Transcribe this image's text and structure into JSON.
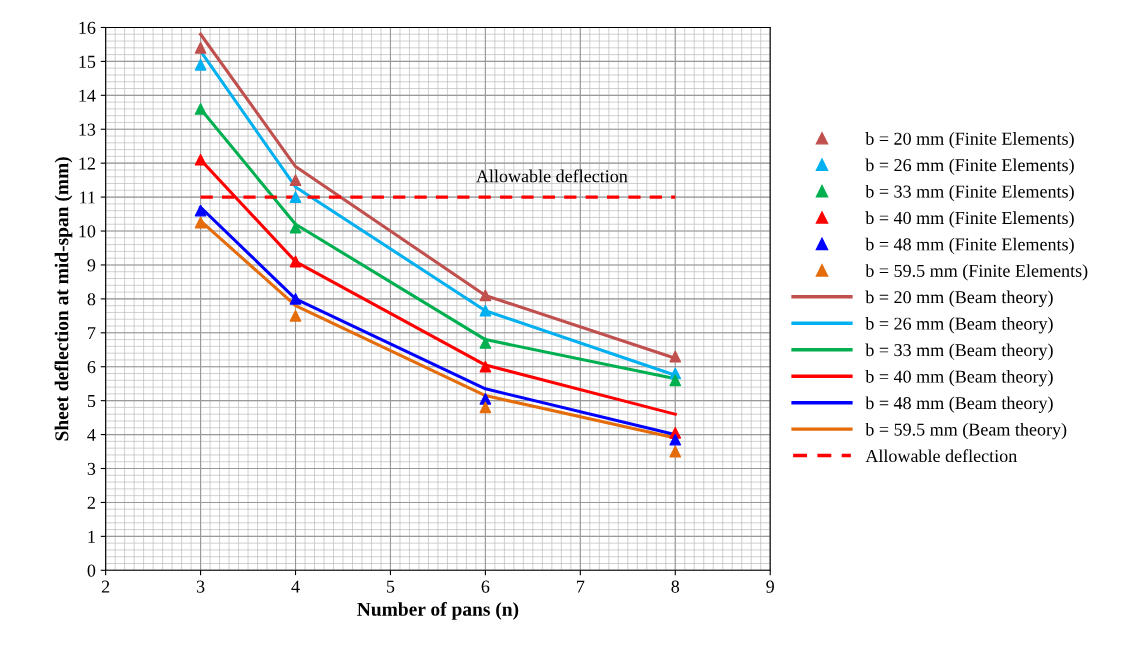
{
  "chart_data": {
    "type": "scatter",
    "xlabel": "Number of pans (n)",
    "ylabel": "Sheet deflection at mid-span (mm)",
    "xlim": [
      2,
      9
    ],
    "xticks": [
      2,
      3,
      4,
      5,
      6,
      7,
      8,
      9
    ],
    "ylim": [
      0,
      16
    ],
    "yticks": [
      0,
      1,
      2,
      3,
      4,
      5,
      6,
      7,
      8,
      9,
      10,
      11,
      12,
      13,
      14,
      15,
      16
    ],
    "grid": true,
    "legend": "right",
    "annotations": [
      {
        "text": "Allowable deflection",
        "x": 6.7,
        "y": 11
      }
    ],
    "series": [
      {
        "name": "b = 20 mm (Finite Elements)",
        "marker": "triangle",
        "color": "#c0504d",
        "x": [
          3,
          4,
          6,
          8
        ],
        "values": [
          15.4,
          11.5,
          8.1,
          6.3
        ]
      },
      {
        "name": "b = 26 mm (Finite Elements)",
        "marker": "triangle",
        "color": "#00b0f0",
        "x": [
          3,
          4,
          6,
          8
        ],
        "values": [
          14.9,
          11.0,
          7.65,
          5.8
        ]
      },
      {
        "name": "b = 33 mm (Finite Elements)",
        "marker": "triangle",
        "color": "#00b050",
        "x": [
          3,
          4,
          6,
          8
        ],
        "values": [
          13.6,
          10.1,
          6.7,
          5.6
        ]
      },
      {
        "name": "b = 40 mm (Finite Elements)",
        "marker": "triangle",
        "color": "#ff0000",
        "x": [
          3,
          4,
          6,
          8
        ],
        "values": [
          12.1,
          9.1,
          6.0,
          4.05
        ]
      },
      {
        "name": "b = 48 mm (Finite Elements)",
        "marker": "triangle",
        "color": "#0000ff",
        "x": [
          3,
          4,
          6,
          8
        ],
        "values": [
          10.6,
          8.0,
          5.05,
          3.85
        ]
      },
      {
        "name": "b = 59.5 mm (Finite Elements)",
        "marker": "triangle",
        "color": "#e46c0a",
        "x": [
          3,
          4,
          6,
          8
        ],
        "values": [
          10.25,
          7.5,
          4.8,
          3.5
        ]
      },
      {
        "name": "b = 20 mm (Beam theory)",
        "type": "line",
        "line_style": "solid",
        "color": "#c0504d",
        "x": [
          3,
          4,
          6,
          8
        ],
        "values": [
          15.8,
          11.9,
          8.1,
          6.25
        ]
      },
      {
        "name": "b = 26 mm (Beam theory)",
        "type": "line",
        "line_style": "solid",
        "color": "#00b0f0",
        "x": [
          3,
          4,
          6,
          8
        ],
        "values": [
          15.3,
          11.3,
          7.65,
          5.75
        ]
      },
      {
        "name": "b = 33 mm (Beam theory)",
        "type": "line",
        "line_style": "solid",
        "color": "#00b050",
        "x": [
          3,
          4,
          6,
          8
        ],
        "values": [
          13.6,
          10.2,
          6.8,
          5.65
        ]
      },
      {
        "name": "b = 40 mm (Beam theory)",
        "type": "line",
        "line_style": "solid",
        "color": "#ff0000",
        "x": [
          3,
          4,
          6,
          8
        ],
        "values": [
          12.1,
          9.1,
          6.05,
          4.6
        ]
      },
      {
        "name": "b = 48 mm (Beam theory)",
        "type": "line",
        "line_style": "solid",
        "color": "#0000ff",
        "x": [
          3,
          4,
          6,
          8
        ],
        "values": [
          10.7,
          8.0,
          5.35,
          4.0
        ]
      },
      {
        "name": "b = 59.5 mm (Beam theory)",
        "type": "line",
        "line_style": "solid",
        "color": "#e46c0a",
        "x": [
          3,
          4,
          6,
          8
        ],
        "values": [
          10.3,
          7.8,
          5.15,
          3.9
        ]
      },
      {
        "name": "Allowable deflection",
        "type": "line",
        "line_style": "dashed",
        "color": "#ff0000",
        "x": [
          3,
          8
        ],
        "values": [
          11,
          11
        ]
      }
    ]
  }
}
